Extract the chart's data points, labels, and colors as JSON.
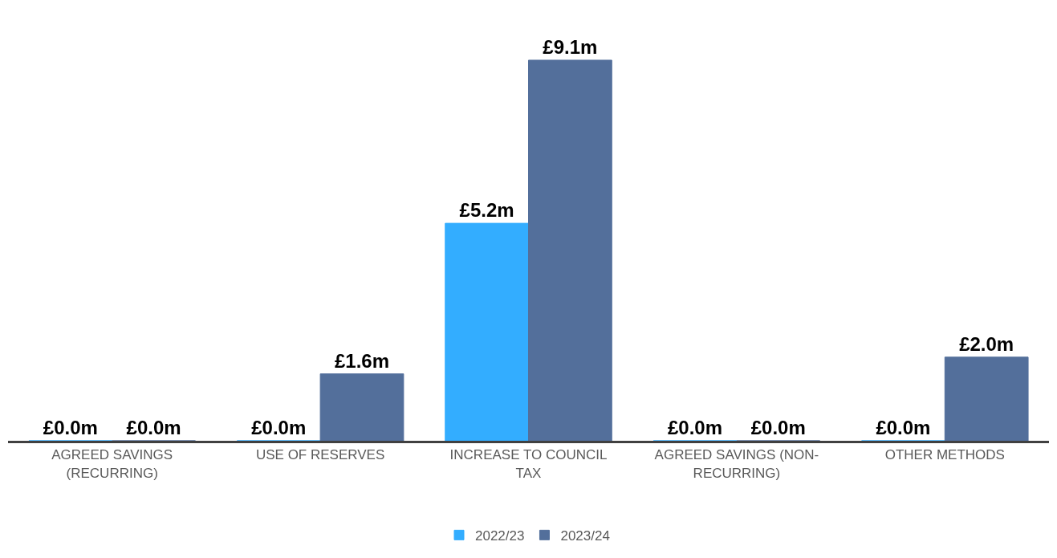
{
  "chart_data": {
    "type": "bar",
    "categories": [
      "AGREED SAVINGS (RECURRING)",
      "USE OF RESERVES",
      "INCREASE TO COUNCIL TAX",
      "AGREED SAVINGS (NON-RECURRING)",
      "OTHER METHODS"
    ],
    "series": [
      {
        "name": "2022/23",
        "color": "#33adff",
        "values": [
          0,
          0,
          5.2,
          0,
          0
        ],
        "value_labels": [
          "£0.0m",
          "£0.0m",
          "£5.2m",
          "£0.0m",
          "£0.0m"
        ]
      },
      {
        "name": "2023/24",
        "color": "#536f9b",
        "values": [
          0,
          1.6,
          9.1,
          0,
          2.0
        ],
        "value_labels": [
          "£0.0m",
          "£1.6m",
          "£9.1m",
          "£0.0m",
          "£2.0m"
        ]
      }
    ],
    "tick_labels": "x",
    "legend": "bottom"
  }
}
